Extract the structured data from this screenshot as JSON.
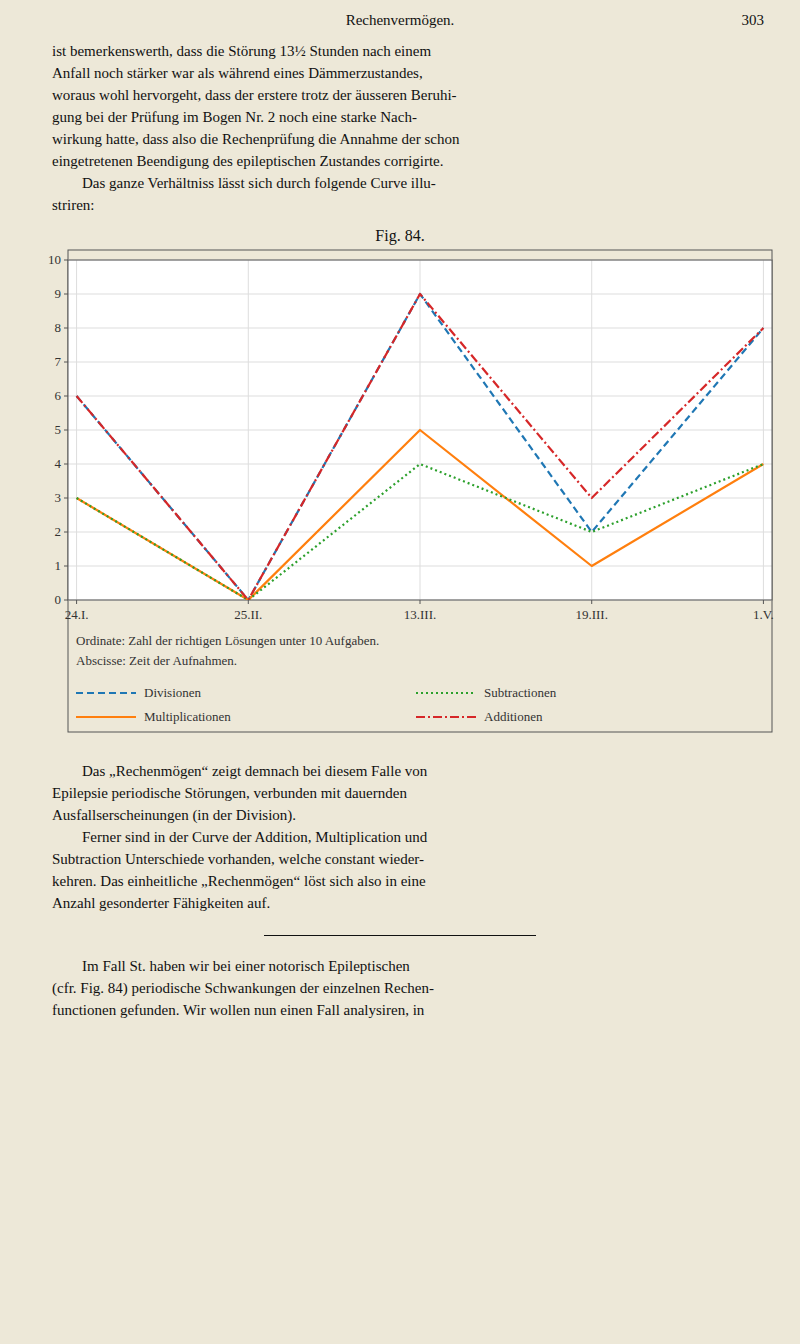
{
  "chart_data": {
    "type": "line",
    "title": "Fig. 84.",
    "categories": [
      "24.I.",
      "25.II.",
      "13.III.",
      "19.III.",
      "1.V."
    ],
    "series": [
      {
        "name": "Divisionen",
        "color": "#1f77b4",
        "line_style": "dashed",
        "values": [
          6,
          0,
          9,
          2,
          8
        ]
      },
      {
        "name": "Multiplicationen",
        "color": "#ff7f0e",
        "line_style": "solid",
        "values": [
          3,
          0,
          5,
          1,
          4
        ]
      },
      {
        "name": "Subtractionen",
        "color": "#2ca02c",
        "line_style": "dotted",
        "values": [
          3,
          0,
          4,
          2,
          4
        ]
      },
      {
        "name": "Additionen",
        "color": "#d62728",
        "line_style": "dashdot",
        "values": [
          6,
          0,
          9,
          3,
          8
        ]
      }
    ],
    "ylim": [
      0,
      10
    ],
    "yticks": [
      0,
      1,
      2,
      3,
      4,
      5,
      6,
      7,
      8,
      9,
      10
    ],
    "grid": true,
    "legend": "bottom",
    "y_label": "Ordinate: Zahl der richtigen Lösungen unter 10 Aufgaben.",
    "x_label": "Abscisse: Zeit der Aufnahmen."
  },
  "page_header": "Rechenvermögen.",
  "page_number": "303",
  "text_before": [
    "ist bemerkenswerth, dass die Störung 13½ Stunden nach einem",
    "Anfall noch stärker war als während eines Dämmerzustandes,",
    "woraus wohl hervorgeht, dass der erstere trotz der äusseren Beruhi-",
    "gung bei der Prüfung im Bogen Nr. 2 noch eine starke Nach-",
    "wirkung hatte, dass also die Rechenprüfung die Annahme der schon",
    "eingetretenen Beendigung des epileptischen Zustandes corrigirte.",
    "        Das ganze Verhältniss lässt sich durch folgende Curve illu-",
    "striren:"
  ],
  "text_after": [
    "        Das „Rechenmögen“ zeigt demnach bei diesem Falle von",
    "Epilepsie periodische Störungen, verbunden mit dauernden",
    "Ausfallserscheinungen (in der Division).",
    "        Ferner sind in der Curve der Addition, Multiplication und",
    "Subtraction Unterschiede vorhanden, welche constant wieder-",
    "kehren. Das einheitliche „Rechenmögen“ löst sich also in eine",
    "Anzahl gesonderter Fähigkeiten auf."
  ],
  "footer_text": [
    "        Im Fall St. haben wir bei einer notorisch Epileptischen",
    "(cfr. Fig. 84) periodische Schwankungen der einzelnen Rechen-",
    "functionen gefunden. Wir wollen nun einen Fall analysiren, in"
  ]
}
